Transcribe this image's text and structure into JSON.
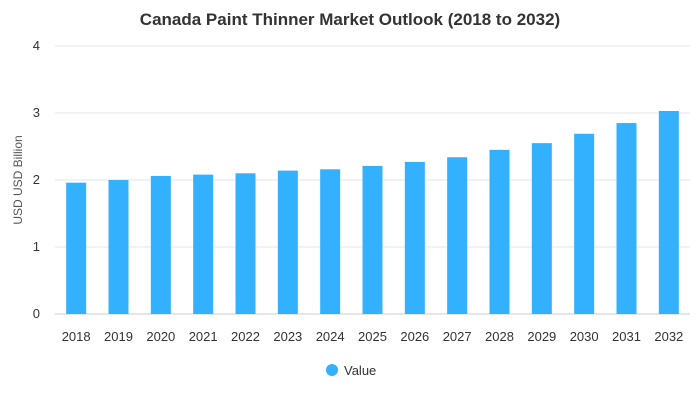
{
  "chart_data": {
    "type": "bar",
    "title": "Canada Paint Thinner Market Outlook (2018 to 2032)",
    "xlabel": "",
    "ylabel": "USD USD Billion",
    "ylim": [
      0,
      4
    ],
    "yticks": [
      0,
      1,
      2,
      3,
      4
    ],
    "grid": true,
    "legend_position": "bottom",
    "categories": [
      "2018",
      "2019",
      "2020",
      "2021",
      "2022",
      "2023",
      "2024",
      "2025",
      "2026",
      "2027",
      "2028",
      "2029",
      "2030",
      "2031",
      "2032"
    ],
    "series": [
      {
        "name": "Value",
        "color": "#33b1ff",
        "values": [
          1.96,
          2.0,
          2.06,
          2.08,
          2.1,
          2.14,
          2.16,
          2.21,
          2.27,
          2.34,
          2.45,
          2.55,
          2.69,
          2.85,
          3.03
        ]
      }
    ]
  }
}
